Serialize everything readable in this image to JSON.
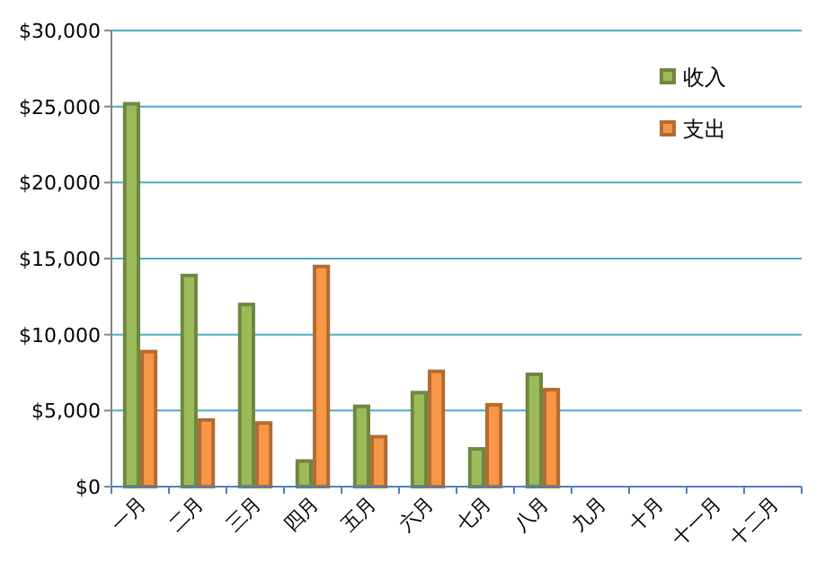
{
  "chart_data": {
    "type": "bar",
    "categories": [
      "一月",
      "二月",
      "三月",
      "四月",
      "五月",
      "六月",
      "七月",
      "八月",
      "九月",
      "十月",
      "十一月",
      "十二月"
    ],
    "series": [
      {
        "name": "收入",
        "color": "#9bbb59",
        "values": [
          25300,
          14000,
          12100,
          1800,
          5400,
          6300,
          2600,
          7500,
          null,
          null,
          null,
          null
        ]
      },
      {
        "name": "支出",
        "color": "#f79646",
        "values": [
          9000,
          4500,
          4300,
          14600,
          3400,
          7700,
          5500,
          6500,
          null,
          null,
          null,
          null
        ]
      }
    ],
    "ylim": [
      0,
      30000
    ],
    "yticks": [
      {
        "value": 0,
        "label": "$0"
      },
      {
        "value": 5000,
        "label": "$5,000"
      },
      {
        "value": 10000,
        "label": "$10,000"
      },
      {
        "value": 15000,
        "label": "$15,000"
      },
      {
        "value": 20000,
        "label": "$20,000"
      },
      {
        "value": 25000,
        "label": "$25,000"
      },
      {
        "value": 30000,
        "label": "$30,000"
      }
    ],
    "grid": "y",
    "legend": "top right"
  }
}
